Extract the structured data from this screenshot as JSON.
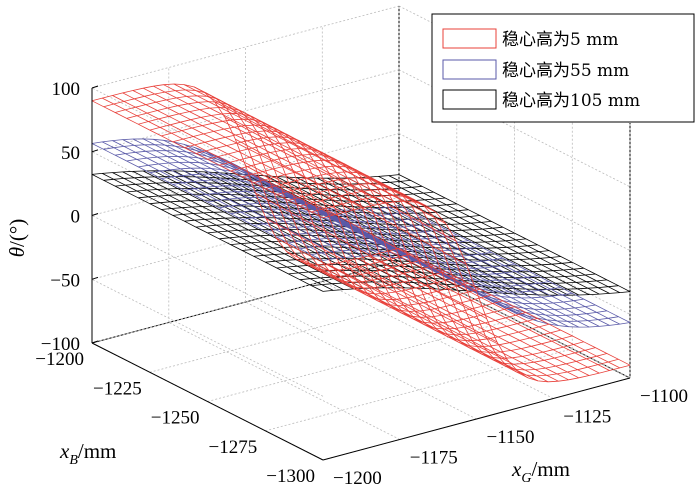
{
  "chart_data": {
    "type": "surface",
    "title": "",
    "x_axis": {
      "label_var": "x",
      "label_sub": "B",
      "label_unit": "/mm",
      "range": [
        -1300,
        -1200
      ],
      "ticks": [
        "-1200",
        "-1225",
        "-1250",
        "-1275",
        "-1300"
      ]
    },
    "y_axis": {
      "label_var": "x",
      "label_sub": "G",
      "label_unit": "/mm",
      "range": [
        -1200,
        -1100
      ],
      "ticks": [
        "-1200",
        "-1175",
        "-1150",
        "-1125",
        "-1100"
      ]
    },
    "z_axis": {
      "label_var": "θ",
      "label_unit": "/(°)",
      "range": [
        -100,
        100
      ],
      "ticks": [
        "100",
        "50",
        "0",
        "-50",
        "-100"
      ]
    },
    "grid": true,
    "legend_position": "top-right",
    "series": [
      {
        "name": "稳心高为5 mm",
        "color": "#e8403a",
        "description": "steep sigmoid: about +85 at xG=-1200, about -85 at xG=-1100, transition centered near xG=-1150",
        "values_at_xG": {
          "-1200": 85,
          "-1175": 75,
          "-1150": 0,
          "-1125": -75,
          "-1100": -85
        }
      },
      {
        "name": "稳心高为55 mm",
        "color": "#5a5aa8",
        "description": "gentle sigmoid: about +58 at xG=-1200, about -58 at xG=-1100",
        "values_at_xG": {
          "-1200": 58,
          "-1175": 40,
          "-1150": 0,
          "-1125": -40,
          "-1100": -58
        }
      },
      {
        "name": "稳心高为105 mm",
        "color": "#000000",
        "description": "near-linear plane: about +40 at xG=-1200, about -40 at xG=-1100",
        "values_at_xG": {
          "-1200": 40,
          "-1175": 20,
          "-1150": 0,
          "-1125": -20,
          "-1100": -40
        }
      }
    ]
  }
}
